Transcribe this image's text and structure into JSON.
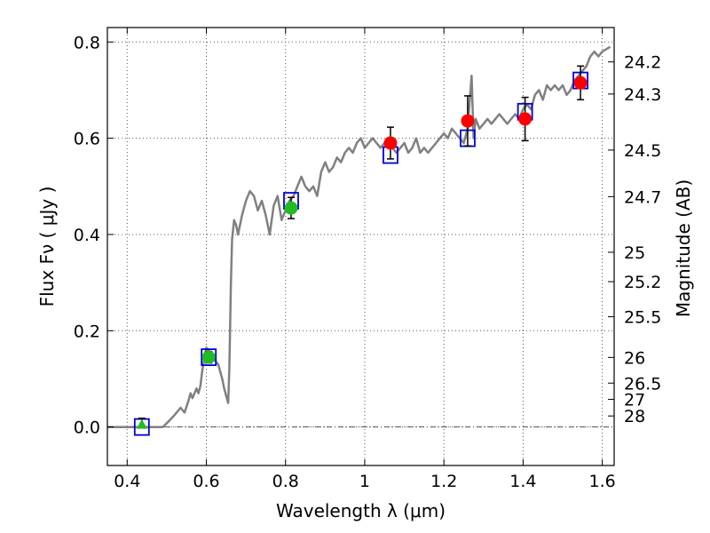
{
  "chart_data": {
    "type": "scatter",
    "xlabel": "Wavelength  λ (μm)",
    "ylabel": "Flux  Fν  ( μJy )",
    "y2label": "Magnitude (AB)",
    "xlim": [
      0.35,
      1.63
    ],
    "ylim": [
      -0.08,
      0.83
    ],
    "grid": true,
    "x_ticks": [
      {
        "value": 0.4,
        "label": "0.4"
      },
      {
        "value": 0.6,
        "label": "0.6"
      },
      {
        "value": 0.8,
        "label": "0.8"
      },
      {
        "value": 1.0,
        "label": "1"
      },
      {
        "value": 1.2,
        "label": "1.2"
      },
      {
        "value": 1.4,
        "label": "1.4"
      },
      {
        "value": 1.6,
        "label": "1.6"
      }
    ],
    "y_ticks": [
      {
        "value": 0.0,
        "label": "0.0"
      },
      {
        "value": 0.2,
        "label": "0.2"
      },
      {
        "value": 0.4,
        "label": "0.4"
      },
      {
        "value": 0.6,
        "label": "0.6"
      },
      {
        "value": 0.8,
        "label": "0.8"
      }
    ],
    "mag_ticks": [
      {
        "value": 24.2,
        "label": "24.2"
      },
      {
        "value": 24.3,
        "label": "24.3"
      },
      {
        "value": 24.5,
        "label": "24.5"
      },
      {
        "value": 24.7,
        "label": "24.7"
      },
      {
        "value": 25,
        "label": "25"
      },
      {
        "value": 25.2,
        "label": "25.2"
      },
      {
        "value": 25.5,
        "label": "25.5"
      },
      {
        "value": 26,
        "label": "26"
      },
      {
        "value": 26.5,
        "label": "26.5"
      },
      {
        "value": 27,
        "label": "27"
      },
      {
        "value": 28,
        "label": "28"
      }
    ],
    "zero_line": 0.0,
    "colors": {
      "spectrum": "#808080",
      "model_box": "#0000dd",
      "optical": "#22bb22",
      "nir": "#ff0000",
      "errorbar": "#000000",
      "grid": "#555555"
    },
    "spectrum": {
      "x": [
        0.35,
        0.49,
        0.505,
        0.52,
        0.535,
        0.545,
        0.555,
        0.56,
        0.565,
        0.575,
        0.58,
        0.585,
        0.59,
        0.6,
        0.61,
        0.62,
        0.63,
        0.64,
        0.645,
        0.65,
        0.655,
        0.658,
        0.662,
        0.665,
        0.67,
        0.675,
        0.68,
        0.69,
        0.7,
        0.71,
        0.72,
        0.73,
        0.74,
        0.75,
        0.76,
        0.77,
        0.78,
        0.79,
        0.8,
        0.81,
        0.82,
        0.83,
        0.84,
        0.85,
        0.86,
        0.87,
        0.88,
        0.89,
        0.9,
        0.91,
        0.92,
        0.93,
        0.94,
        0.95,
        0.96,
        0.97,
        0.98,
        0.99,
        1.0,
        1.01,
        1.02,
        1.03,
        1.04,
        1.05,
        1.06,
        1.07,
        1.08,
        1.09,
        1.1,
        1.11,
        1.12,
        1.13,
        1.14,
        1.15,
        1.16,
        1.17,
        1.18,
        1.19,
        1.2,
        1.21,
        1.22,
        1.23,
        1.24,
        1.25,
        1.26,
        1.27,
        1.275,
        1.28,
        1.285,
        1.29,
        1.3,
        1.31,
        1.32,
        1.33,
        1.34,
        1.35,
        1.36,
        1.37,
        1.38,
        1.39,
        1.4,
        1.41,
        1.42,
        1.43,
        1.44,
        1.45,
        1.46,
        1.47,
        1.48,
        1.49,
        1.5,
        1.51,
        1.52,
        1.53,
        1.54,
        1.55,
        1.56,
        1.57,
        1.58,
        1.59,
        1.6,
        1.61,
        1.62
      ],
      "y": [
        0.0,
        0.0,
        0.012,
        0.025,
        0.04,
        0.03,
        0.055,
        0.07,
        0.06,
        0.08,
        0.07,
        0.085,
        0.12,
        0.165,
        0.155,
        0.14,
        0.13,
        0.1,
        0.08,
        0.065,
        0.05,
        0.12,
        0.3,
        0.39,
        0.43,
        0.42,
        0.4,
        0.44,
        0.47,
        0.49,
        0.48,
        0.45,
        0.47,
        0.44,
        0.4,
        0.46,
        0.48,
        0.43,
        0.45,
        0.47,
        0.48,
        0.5,
        0.52,
        0.5,
        0.49,
        0.5,
        0.48,
        0.53,
        0.55,
        0.53,
        0.54,
        0.56,
        0.55,
        0.57,
        0.58,
        0.57,
        0.59,
        0.6,
        0.58,
        0.59,
        0.6,
        0.59,
        0.58,
        0.59,
        0.6,
        0.58,
        0.57,
        0.58,
        0.59,
        0.57,
        0.58,
        0.6,
        0.57,
        0.58,
        0.57,
        0.58,
        0.59,
        0.6,
        0.61,
        0.6,
        0.62,
        0.61,
        0.6,
        0.59,
        0.62,
        0.73,
        0.6,
        0.64,
        0.63,
        0.62,
        0.63,
        0.64,
        0.63,
        0.64,
        0.65,
        0.64,
        0.63,
        0.64,
        0.65,
        0.64,
        0.66,
        0.67,
        0.66,
        0.69,
        0.7,
        0.68,
        0.71,
        0.7,
        0.71,
        0.7,
        0.71,
        0.69,
        0.7,
        0.72,
        0.73,
        0.74,
        0.75,
        0.77,
        0.78,
        0.77,
        0.78,
        0.785,
        0.79
      ]
    },
    "model_boxes": [
      {
        "x": 0.437,
        "y": 0.0
      },
      {
        "x": 0.606,
        "y": 0.145
      },
      {
        "x": 0.814,
        "y": 0.47
      },
      {
        "x": 1.065,
        "y": 0.565
      },
      {
        "x": 1.26,
        "y": 0.6
      },
      {
        "x": 1.405,
        "y": 0.655
      },
      {
        "x": 1.545,
        "y": 0.72
      }
    ],
    "upper_limit": {
      "x": 0.437,
      "y": 0.0,
      "err_top": 0.018
    },
    "optical_points": [
      {
        "x": 0.606,
        "y": 0.145,
        "err": 0.012
      },
      {
        "x": 0.814,
        "y": 0.455,
        "err": 0.022
      }
    ],
    "nir_points": [
      {
        "x": 1.065,
        "y": 0.59,
        "err": 0.033
      },
      {
        "x": 1.26,
        "y": 0.636,
        "err": 0.052
      },
      {
        "x": 1.405,
        "y": 0.64,
        "err": 0.045
      },
      {
        "x": 1.545,
        "y": 0.715,
        "err": 0.035
      }
    ]
  }
}
